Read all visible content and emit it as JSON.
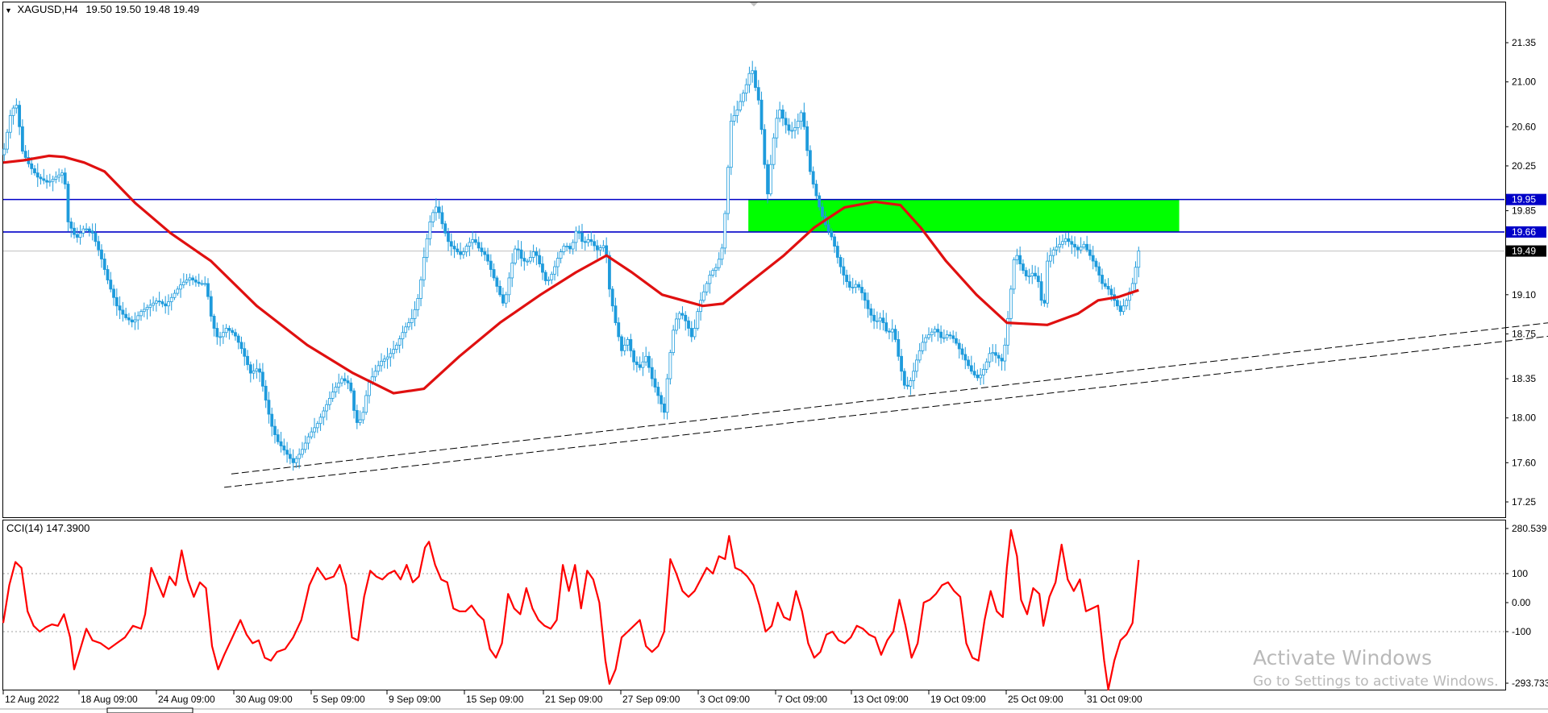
{
  "chart_header": {
    "symbol": "XAGUSD,H4",
    "ohlc": "19.50 19.50 19.48 19.49"
  },
  "cci_header": {
    "label": "CCI(14) 147.3900"
  },
  "price_axis": {
    "ticks": [
      "21.35",
      "21.00",
      "20.60",
      "20.25",
      "19.85",
      "19.10",
      "18.75",
      "18.35",
      "18.00",
      "17.60",
      "17.25"
    ],
    "tick_values": [
      21.35,
      21.0,
      20.6,
      20.25,
      19.85,
      19.1,
      18.75,
      18.35,
      18.0,
      17.6,
      17.25
    ],
    "levels": [
      {
        "label": "19.95",
        "value": 19.95,
        "color": "#0000c8"
      },
      {
        "label": "19.66",
        "value": 19.66,
        "color": "#0000c8"
      }
    ],
    "current_price": {
      "label": "19.49",
      "value": 19.49
    }
  },
  "cci_axis": {
    "ticks": [
      "280.539",
      "100",
      "0.00",
      "-100",
      "-293.733"
    ],
    "tick_values": [
      280.539,
      100,
      0,
      -100,
      -293.733
    ],
    "levels": [
      100,
      -100
    ]
  },
  "time_axis": {
    "labels": [
      "12 Aug 2022",
      "18 Aug 09:00",
      "24 Aug 09:00",
      "30 Aug 09:00",
      "5 Sep 09:00",
      "9 Sep 09:00",
      "15 Sep 09:00",
      "21 Sep 09:00",
      "27 Sep 09:00",
      "3 Oct 09:00",
      "7 Oct 09:00",
      "13 Oct 09:00",
      "19 Oct 09:00",
      "25 Oct 09:00",
      "31 Oct 09:00"
    ]
  },
  "zone": {
    "from": 19.66,
    "to": 19.95,
    "color": "#00ff00"
  },
  "colors": {
    "candle": "#1e9bdc",
    "moving_average": "#e01010",
    "cci_line": "#ff0000",
    "level_line": "#0000c8",
    "trendline": "#000000"
  },
  "watermark": {
    "title": "Activate Windows",
    "subtitle": "Go to Settings to activate Windows."
  },
  "chart_data": {
    "type": "line",
    "price_path": [
      [
        0,
        20.35
      ],
      [
        8,
        20.75
      ],
      [
        14,
        20.8
      ],
      [
        18,
        20.4
      ],
      [
        26,
        20.25
      ],
      [
        34,
        20.15
      ],
      [
        44,
        20.1
      ],
      [
        52,
        20.15
      ],
      [
        60,
        20.2
      ],
      [
        64,
        19.75
      ],
      [
        72,
        19.6
      ],
      [
        80,
        19.7
      ],
      [
        88,
        19.65
      ],
      [
        96,
        19.45
      ],
      [
        104,
        19.2
      ],
      [
        112,
        19.0
      ],
      [
        120,
        18.9
      ],
      [
        128,
        18.85
      ],
      [
        136,
        18.95
      ],
      [
        144,
        19.0
      ],
      [
        152,
        19.05
      ],
      [
        160,
        19.0
      ],
      [
        168,
        19.1
      ],
      [
        176,
        19.2
      ],
      [
        184,
        19.25
      ],
      [
        192,
        19.2
      ],
      [
        200,
        19.2
      ],
      [
        206,
        18.85
      ],
      [
        212,
        18.7
      ],
      [
        220,
        18.8
      ],
      [
        228,
        18.75
      ],
      [
        236,
        18.6
      ],
      [
        244,
        18.4
      ],
      [
        252,
        18.45
      ],
      [
        258,
        18.2
      ],
      [
        264,
        17.95
      ],
      [
        270,
        17.8
      ],
      [
        278,
        17.7
      ],
      [
        286,
        17.6
      ],
      [
        294,
        17.7
      ],
      [
        302,
        17.85
      ],
      [
        310,
        17.95
      ],
      [
        318,
        18.1
      ],
      [
        326,
        18.25
      ],
      [
        334,
        18.35
      ],
      [
        342,
        18.3
      ],
      [
        348,
        17.95
      ],
      [
        354,
        18.0
      ],
      [
        360,
        18.3
      ],
      [
        366,
        18.4
      ],
      [
        372,
        18.5
      ],
      [
        380,
        18.55
      ],
      [
        388,
        18.65
      ],
      [
        396,
        18.8
      ],
      [
        404,
        18.9
      ],
      [
        410,
        19.1
      ],
      [
        416,
        19.5
      ],
      [
        422,
        19.8
      ],
      [
        428,
        19.9
      ],
      [
        434,
        19.7
      ],
      [
        440,
        19.55
      ],
      [
        446,
        19.5
      ],
      [
        452,
        19.45
      ],
      [
        458,
        19.55
      ],
      [
        464,
        19.6
      ],
      [
        470,
        19.5
      ],
      [
        476,
        19.45
      ],
      [
        482,
        19.3
      ],
      [
        488,
        19.15
      ],
      [
        494,
        19.0
      ],
      [
        500,
        19.3
      ],
      [
        506,
        19.55
      ],
      [
        512,
        19.4
      ],
      [
        518,
        19.4
      ],
      [
        524,
        19.5
      ],
      [
        530,
        19.35
      ],
      [
        536,
        19.2
      ],
      [
        542,
        19.3
      ],
      [
        548,
        19.45
      ],
      [
        554,
        19.55
      ],
      [
        560,
        19.5
      ],
      [
        566,
        19.7
      ],
      [
        572,
        19.55
      ],
      [
        578,
        19.6
      ],
      [
        586,
        19.5
      ],
      [
        594,
        19.55
      ],
      [
        598,
        19.15
      ],
      [
        604,
        18.85
      ],
      [
        610,
        18.6
      ],
      [
        616,
        18.7
      ],
      [
        622,
        18.5
      ],
      [
        628,
        18.45
      ],
      [
        634,
        18.55
      ],
      [
        640,
        18.35
      ],
      [
        646,
        18.2
      ],
      [
        652,
        18.05
      ],
      [
        656,
        18.45
      ],
      [
        662,
        18.85
      ],
      [
        668,
        18.95
      ],
      [
        674,
        18.85
      ],
      [
        680,
        18.7
      ],
      [
        686,
        19.0
      ],
      [
        692,
        19.15
      ],
      [
        698,
        19.3
      ],
      [
        704,
        19.35
      ],
      [
        710,
        19.55
      ],
      [
        714,
        20.1
      ],
      [
        718,
        20.65
      ],
      [
        724,
        20.75
      ],
      [
        728,
        20.85
      ],
      [
        734,
        21.0
      ],
      [
        738,
        21.15
      ],
      [
        742,
        20.95
      ],
      [
        746,
        20.8
      ],
      [
        750,
        20.35
      ],
      [
        754,
        20.0
      ],
      [
        758,
        20.35
      ],
      [
        762,
        20.65
      ],
      [
        766,
        20.75
      ],
      [
        770,
        20.65
      ],
      [
        776,
        20.55
      ],
      [
        782,
        20.6
      ],
      [
        788,
        20.75
      ],
      [
        792,
        20.45
      ],
      [
        796,
        20.2
      ],
      [
        800,
        20.05
      ],
      [
        806,
        19.85
      ],
      [
        812,
        19.7
      ],
      [
        818,
        19.6
      ],
      [
        824,
        19.4
      ],
      [
        830,
        19.25
      ],
      [
        836,
        19.15
      ],
      [
        842,
        19.2
      ],
      [
        848,
        19.1
      ],
      [
        854,
        18.95
      ],
      [
        860,
        18.85
      ],
      [
        866,
        18.9
      ],
      [
        872,
        18.75
      ],
      [
        878,
        18.8
      ],
      [
        884,
        18.5
      ],
      [
        890,
        18.25
      ],
      [
        896,
        18.35
      ],
      [
        902,
        18.55
      ],
      [
        908,
        18.7
      ],
      [
        914,
        18.75
      ],
      [
        920,
        18.8
      ],
      [
        926,
        18.7
      ],
      [
        932,
        18.75
      ],
      [
        938,
        18.7
      ],
      [
        944,
        18.6
      ],
      [
        950,
        18.5
      ],
      [
        956,
        18.4
      ],
      [
        962,
        18.35
      ],
      [
        968,
        18.45
      ],
      [
        974,
        18.6
      ],
      [
        980,
        18.55
      ],
      [
        986,
        18.5
      ],
      [
        990,
        18.8
      ],
      [
        994,
        19.15
      ],
      [
        998,
        19.5
      ],
      [
        1004,
        19.35
      ],
      [
        1010,
        19.25
      ],
      [
        1016,
        19.3
      ],
      [
        1022,
        19.2
      ],
      [
        1026,
        18.9
      ],
      [
        1030,
        19.4
      ],
      [
        1036,
        19.5
      ],
      [
        1042,
        19.55
      ],
      [
        1048,
        19.6
      ],
      [
        1054,
        19.55
      ],
      [
        1060,
        19.5
      ],
      [
        1066,
        19.55
      ],
      [
        1072,
        19.45
      ],
      [
        1078,
        19.35
      ],
      [
        1084,
        19.2
      ],
      [
        1090,
        19.15
      ],
      [
        1096,
        19.05
      ],
      [
        1102,
        18.95
      ],
      [
        1108,
        19.05
      ],
      [
        1114,
        19.2
      ],
      [
        1120,
        19.49
      ]
    ],
    "ma_path": [
      [
        0,
        20.28
      ],
      [
        20,
        20.3
      ],
      [
        45,
        20.34
      ],
      [
        60,
        20.33
      ],
      [
        80,
        20.28
      ],
      [
        100,
        20.2
      ],
      [
        130,
        19.92
      ],
      [
        165,
        19.65
      ],
      [
        205,
        19.4
      ],
      [
        250,
        19.0
      ],
      [
        300,
        18.65
      ],
      [
        345,
        18.4
      ],
      [
        385,
        18.22
      ],
      [
        415,
        18.26
      ],
      [
        450,
        18.55
      ],
      [
        490,
        18.85
      ],
      [
        530,
        19.1
      ],
      [
        565,
        19.3
      ],
      [
        595,
        19.45
      ],
      [
        620,
        19.3
      ],
      [
        650,
        19.1
      ],
      [
        690,
        19.0
      ],
      [
        710,
        19.02
      ],
      [
        735,
        19.2
      ],
      [
        770,
        19.45
      ],
      [
        800,
        19.7
      ],
      [
        830,
        19.88
      ],
      [
        860,
        19.93
      ],
      [
        885,
        19.9
      ],
      [
        905,
        19.7
      ],
      [
        930,
        19.4
      ],
      [
        960,
        19.1
      ],
      [
        990,
        18.85
      ],
      [
        1030,
        18.83
      ],
      [
        1060,
        18.93
      ],
      [
        1080,
        19.05
      ],
      [
        1100,
        19.08
      ],
      [
        1120,
        19.14
      ]
    ],
    "cci_path": [
      [
        0,
        -70
      ],
      [
        6,
        60
      ],
      [
        12,
        140
      ],
      [
        18,
        120
      ],
      [
        24,
        -30
      ],
      [
        30,
        -80
      ],
      [
        36,
        -100
      ],
      [
        42,
        -85
      ],
      [
        48,
        -75
      ],
      [
        54,
        -80
      ],
      [
        60,
        -40
      ],
      [
        66,
        -120
      ],
      [
        70,
        -230
      ],
      [
        76,
        -160
      ],
      [
        82,
        -90
      ],
      [
        88,
        -130
      ],
      [
        96,
        -140
      ],
      [
        104,
        -160
      ],
      [
        112,
        -140
      ],
      [
        120,
        -120
      ],
      [
        128,
        -80
      ],
      [
        136,
        -90
      ],
      [
        140,
        -40
      ],
      [
        146,
        120
      ],
      [
        152,
        70
      ],
      [
        158,
        20
      ],
      [
        164,
        90
      ],
      [
        170,
        60
      ],
      [
        176,
        180
      ],
      [
        182,
        80
      ],
      [
        188,
        20
      ],
      [
        194,
        70
      ],
      [
        200,
        50
      ],
      [
        206,
        -150
      ],
      [
        212,
        -230
      ],
      [
        218,
        -180
      ],
      [
        226,
        -120
      ],
      [
        234,
        -60
      ],
      [
        240,
        -110
      ],
      [
        246,
        -140
      ],
      [
        252,
        -130
      ],
      [
        258,
        -190
      ],
      [
        264,
        -200
      ],
      [
        270,
        -170
      ],
      [
        278,
        -160
      ],
      [
        286,
        -120
      ],
      [
        294,
        -60
      ],
      [
        302,
        60
      ],
      [
        310,
        120
      ],
      [
        318,
        80
      ],
      [
        326,
        90
      ],
      [
        332,
        130
      ],
      [
        338,
        60
      ],
      [
        344,
        -120
      ],
      [
        350,
        -130
      ],
      [
        356,
        20
      ],
      [
        362,
        110
      ],
      [
        368,
        90
      ],
      [
        374,
        80
      ],
      [
        380,
        100
      ],
      [
        386,
        110
      ],
      [
        392,
        80
      ],
      [
        398,
        130
      ],
      [
        404,
        70
      ],
      [
        410,
        90
      ],
      [
        416,
        190
      ],
      [
        420,
        210
      ],
      [
        426,
        130
      ],
      [
        432,
        80
      ],
      [
        438,
        70
      ],
      [
        444,
        -20
      ],
      [
        450,
        -30
      ],
      [
        456,
        -30
      ],
      [
        462,
        -10
      ],
      [
        468,
        -40
      ],
      [
        474,
        -60
      ],
      [
        480,
        -160
      ],
      [
        486,
        -190
      ],
      [
        492,
        -140
      ],
      [
        498,
        30
      ],
      [
        504,
        -20
      ],
      [
        510,
        -40
      ],
      [
        516,
        50
      ],
      [
        522,
        -20
      ],
      [
        528,
        -60
      ],
      [
        534,
        -80
      ],
      [
        540,
        -90
      ],
      [
        546,
        -60
      ],
      [
        552,
        130
      ],
      [
        558,
        40
      ],
      [
        564,
        130
      ],
      [
        570,
        -20
      ],
      [
        576,
        110
      ],
      [
        582,
        80
      ],
      [
        588,
        0
      ],
      [
        594,
        -200
      ],
      [
        598,
        -280
      ],
      [
        604,
        -230
      ],
      [
        610,
        -120
      ],
      [
        616,
        -100
      ],
      [
        622,
        -80
      ],
      [
        628,
        -60
      ],
      [
        634,
        -150
      ],
      [
        640,
        -170
      ],
      [
        646,
        -150
      ],
      [
        652,
        -100
      ],
      [
        658,
        150
      ],
      [
        664,
        100
      ],
      [
        670,
        40
      ],
      [
        676,
        20
      ],
      [
        682,
        40
      ],
      [
        688,
        80
      ],
      [
        694,
        120
      ],
      [
        700,
        100
      ],
      [
        706,
        160
      ],
      [
        712,
        150
      ],
      [
        716,
        230
      ],
      [
        722,
        120
      ],
      [
        728,
        110
      ],
      [
        734,
        90
      ],
      [
        740,
        60
      ],
      [
        746,
        -10
      ],
      [
        752,
        -100
      ],
      [
        758,
        -80
      ],
      [
        764,
        0
      ],
      [
        770,
        -50
      ],
      [
        776,
        -60
      ],
      [
        782,
        40
      ],
      [
        788,
        -30
      ],
      [
        794,
        -140
      ],
      [
        800,
        -190
      ],
      [
        806,
        -170
      ],
      [
        812,
        -110
      ],
      [
        818,
        -100
      ],
      [
        824,
        -130
      ],
      [
        830,
        -140
      ],
      [
        836,
        -120
      ],
      [
        842,
        -80
      ],
      [
        848,
        -90
      ],
      [
        854,
        -110
      ],
      [
        860,
        -120
      ],
      [
        866,
        -180
      ],
      [
        872,
        -130
      ],
      [
        878,
        -100
      ],
      [
        884,
        10
      ],
      [
        890,
        -80
      ],
      [
        896,
        -190
      ],
      [
        902,
        -140
      ],
      [
        908,
        0
      ],
      [
        914,
        10
      ],
      [
        920,
        30
      ],
      [
        926,
        60
      ],
      [
        932,
        70
      ],
      [
        938,
        40
      ],
      [
        944,
        20
      ],
      [
        950,
        -140
      ],
      [
        956,
        -190
      ],
      [
        962,
        -200
      ],
      [
        968,
        -60
      ],
      [
        974,
        40
      ],
      [
        980,
        -30
      ],
      [
        986,
        -50
      ],
      [
        990,
        120
      ],
      [
        994,
        250
      ],
      [
        1000,
        160
      ],
      [
        1004,
        10
      ],
      [
        1010,
        -40
      ],
      [
        1016,
        50
      ],
      [
        1022,
        30
      ],
      [
        1026,
        -80
      ],
      [
        1032,
        20
      ],
      [
        1038,
        70
      ],
      [
        1044,
        200
      ],
      [
        1050,
        80
      ],
      [
        1056,
        40
      ],
      [
        1062,
        80
      ],
      [
        1068,
        -30
      ],
      [
        1074,
        -20
      ],
      [
        1080,
        -10
      ],
      [
        1086,
        -200
      ],
      [
        1090,
        -300
      ],
      [
        1096,
        -200
      ],
      [
        1102,
        -130
      ],
      [
        1108,
        -110
      ],
      [
        1114,
        -70
      ],
      [
        1120,
        147
      ]
    ],
    "trendlines": [
      {
        "from": [
          225,
          17.5
        ],
        "to": [
          1525,
          18.85
        ]
      },
      {
        "from": [
          218,
          17.38
        ],
        "to": [
          1525,
          18.73
        ]
      }
    ]
  }
}
